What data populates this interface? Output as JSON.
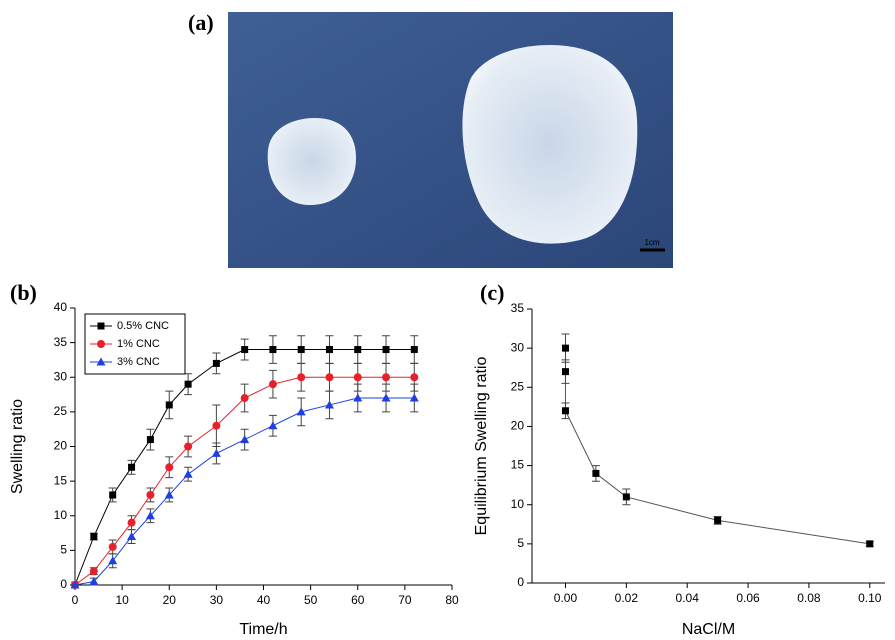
{
  "photo": {
    "panel_label": "(a)",
    "scale_bar": "1cm"
  },
  "chart_data": [
    {
      "type": "line",
      "panel_label": "(b)",
      "xlabel": "Time/h",
      "ylabel": "Swelling ratio",
      "x": [
        0,
        4,
        8,
        12,
        16,
        20,
        24,
        30,
        36,
        42,
        48,
        54,
        60,
        66,
        72
      ],
      "xlim": [
        0,
        80
      ],
      "xticks": [
        0,
        10,
        20,
        30,
        40,
        50,
        60,
        70,
        80
      ],
      "ylim": [
        0,
        40
      ],
      "yticks": [
        0,
        5,
        10,
        15,
        20,
        25,
        30,
        35,
        40
      ],
      "legend": "upper-left",
      "series": [
        {
          "name": "0.5% CNC",
          "color": "#000000",
          "marker": "square",
          "values": [
            0,
            7,
            13,
            17,
            21,
            26,
            29,
            32,
            34,
            34,
            34,
            34,
            34,
            34,
            34
          ],
          "errors": [
            0,
            0.5,
            1,
            1,
            1.5,
            2,
            1.5,
            1.5,
            1.5,
            2,
            2,
            2,
            2,
            2,
            2
          ]
        },
        {
          "name": "1% CNC",
          "color": "#e8202a",
          "marker": "circle",
          "values": [
            0,
            2,
            5.5,
            9,
            13,
            17,
            20,
            23,
            27,
            29,
            30,
            30,
            30,
            30,
            30
          ],
          "errors": [
            0,
            0.5,
            1,
            1,
            1,
            1.5,
            1.5,
            3,
            2,
            2,
            2,
            2,
            2,
            2,
            2
          ]
        },
        {
          "name": "3% CNC",
          "color": "#1f3fe0",
          "marker": "triangle",
          "values": [
            0,
            0.5,
            3.5,
            7,
            10,
            13,
            16,
            19,
            21,
            23,
            25,
            26,
            27,
            27,
            27
          ],
          "errors": [
            0,
            0.5,
            1,
            1,
            1,
            1,
            1,
            1.5,
            1.5,
            1.5,
            2,
            2,
            2,
            2,
            2
          ]
        }
      ]
    },
    {
      "type": "scatter",
      "panel_label": "(c)",
      "xlabel": "NaCl/M",
      "ylabel": "Equilibrium Swelling ratio",
      "xlim": [
        -0.011,
        0.105
      ],
      "xticks": [
        {
          "value": 0,
          "label": "0.00"
        },
        {
          "value": 0.02,
          "label": "0.02"
        },
        {
          "value": 0.04,
          "label": "0.04"
        },
        {
          "value": 0.06,
          "label": "0.06"
        },
        {
          "value": 0.08,
          "label": "0.08"
        },
        {
          "value": 0.1,
          "label": "0.10"
        }
      ],
      "ylim": [
        0,
        35
      ],
      "yticks": [
        0,
        5,
        10,
        15,
        20,
        25,
        30,
        35
      ],
      "series": [
        {
          "color": "#000000",
          "marker": "square",
          "x": [
            0,
            0,
            0,
            0.01,
            0.02,
            0.05,
            0.1
          ],
          "values": [
            30,
            27,
            22,
            14,
            11,
            8,
            5
          ],
          "errors": [
            1.8,
            1.5,
            1,
            1,
            1,
            0.5,
            0.3
          ]
        }
      ]
    }
  ]
}
